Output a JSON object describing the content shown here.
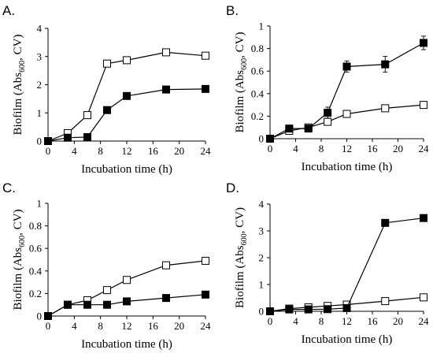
{
  "chart_data": [
    {
      "type": "line",
      "panel_label": "A.",
      "xlabel": "Incubation time (h)",
      "ylabel": "Biofilm (Abs600, CV)",
      "ylabel_parts": {
        "pre": "Biofilm (Abs",
        "sub": "600",
        "post": ", CV)"
      },
      "xlim": [
        0,
        24
      ],
      "ylim": [
        0,
        4
      ],
      "x_ticks": [
        "0",
        "4",
        "8",
        "12",
        "16",
        "20",
        "24"
      ],
      "y_ticks": [
        "0",
        "1",
        "2",
        "3",
        "4"
      ],
      "grid": false,
      "legend": "none",
      "x": [
        0,
        3,
        6,
        9,
        12,
        18,
        24
      ],
      "series": [
        {
          "marker": "open-square",
          "values": [
            0.0,
            0.28,
            0.92,
            2.75,
            2.87,
            3.15,
            3.03
          ],
          "errors": [
            0,
            0.04,
            0.05,
            0.12,
            0.08,
            0.08,
            0.08
          ]
        },
        {
          "marker": "filled-square",
          "values": [
            0.0,
            0.12,
            0.14,
            1.1,
            1.6,
            1.83,
            1.85
          ],
          "errors": [
            0,
            0.02,
            0.03,
            0.12,
            0.05,
            0.05,
            0.05
          ]
        }
      ]
    },
    {
      "type": "line",
      "panel_label": "B.",
      "xlabel": "Incubation time (h)",
      "ylabel": "Biofilm (Abs600, CV)",
      "ylabel_parts": {
        "pre": "Biofilm (Abs",
        "sub": "600",
        "post": ", CV)"
      },
      "xlim": [
        0,
        24
      ],
      "ylim": [
        0,
        1
      ],
      "x_ticks": [
        "0",
        "4",
        "8",
        "12",
        "16",
        "20",
        "24"
      ],
      "y_ticks": [
        "0",
        "0.2",
        "0.4",
        "0.6",
        "0.8",
        "1"
      ],
      "grid": false,
      "legend": "none",
      "x": [
        0,
        3,
        6,
        9,
        12,
        18,
        24
      ],
      "series": [
        {
          "marker": "open-square",
          "values": [
            0.0,
            0.07,
            0.1,
            0.15,
            0.22,
            0.27,
            0.3
          ],
          "errors": [
            0,
            0.01,
            0.015,
            0.02,
            0.02,
            0.02,
            0.03
          ]
        },
        {
          "marker": "filled-square",
          "values": [
            0.0,
            0.09,
            0.09,
            0.23,
            0.64,
            0.66,
            0.85
          ],
          "errors": [
            0,
            0.01,
            0.015,
            0.05,
            0.05,
            0.07,
            0.06
          ]
        }
      ]
    },
    {
      "type": "line",
      "panel_label": "C.",
      "xlabel": "Incubation time (h)",
      "ylabel": "Biofilm (Abs600, CV)",
      "ylabel_parts": {
        "pre": "Biofilm (Abs",
        "sub": "600",
        "post": ", CV)"
      },
      "xlim": [
        0,
        24
      ],
      "ylim": [
        0,
        1
      ],
      "x_ticks": [
        "0",
        "4",
        "8",
        "12",
        "16",
        "20",
        "24"
      ],
      "y_ticks": [
        "0",
        "0.2",
        "0.4",
        "0.6",
        "0.8",
        "1"
      ],
      "grid": false,
      "legend": "none",
      "x": [
        0,
        3,
        6,
        9,
        12,
        18,
        24
      ],
      "series": [
        {
          "marker": "open-square",
          "values": [
            0.0,
            0.1,
            0.14,
            0.23,
            0.32,
            0.45,
            0.49
          ],
          "errors": [
            0,
            0.01,
            0.01,
            0.015,
            0.03,
            0.03,
            0.03
          ]
        },
        {
          "marker": "filled-square",
          "values": [
            0.0,
            0.1,
            0.1,
            0.1,
            0.13,
            0.16,
            0.19
          ],
          "errors": [
            0,
            0.01,
            0.01,
            0.01,
            0.01,
            0.01,
            0.01
          ]
        }
      ]
    },
    {
      "type": "line",
      "panel_label": "D.",
      "xlabel": "Incubation time (h)",
      "ylabel": "Biofilm (Abs600, CV)",
      "ylabel_parts": {
        "pre": "Biofilm (Abs",
        "sub": "600",
        "post": ", CV)"
      },
      "xlim": [
        0,
        24
      ],
      "ylim": [
        0,
        4
      ],
      "x_ticks": [
        "0",
        "4",
        "8",
        "12",
        "16",
        "20",
        "24"
      ],
      "y_ticks": [
        "0",
        "1",
        "2",
        "3",
        "4"
      ],
      "grid": false,
      "legend": "none",
      "x": [
        0,
        3,
        6,
        9,
        12,
        18,
        24
      ],
      "series": [
        {
          "marker": "open-square",
          "values": [
            0.0,
            0.1,
            0.15,
            0.2,
            0.25,
            0.38,
            0.52
          ],
          "errors": [
            0,
            0.02,
            0.02,
            0.02,
            0.03,
            0.03,
            0.03
          ]
        },
        {
          "marker": "filled-square",
          "values": [
            0.0,
            0.07,
            0.07,
            0.08,
            0.12,
            3.3,
            3.48
          ],
          "errors": [
            0,
            0.02,
            0.02,
            0.02,
            0.02,
            0.08,
            0.08
          ]
        }
      ]
    }
  ]
}
